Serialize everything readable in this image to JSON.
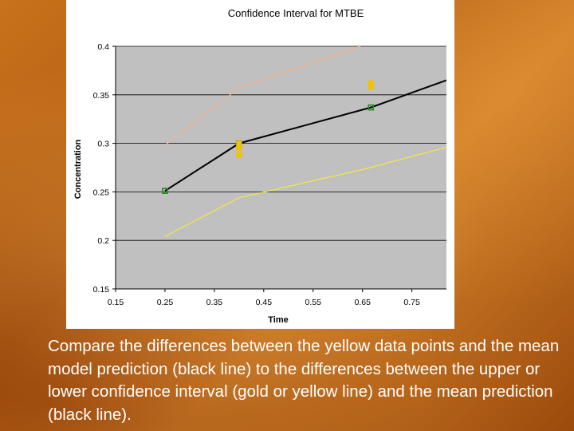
{
  "slide": {
    "caption": "Compare the differences between the yellow data points and the mean model prediction (black line) to the differences between the upper or lower confidence interval (gold or yellow line) and the mean prediction (black line).",
    "colors": {
      "background": "#b9651a",
      "caption_text": "#ffffff"
    }
  },
  "chart_data": {
    "type": "line",
    "title": "Confidence Interval for MTBE",
    "xlabel": "Time",
    "ylabel": "Concentration",
    "xlim": [
      0.15,
      0.82
    ],
    "ylim": [
      0.15,
      0.4
    ],
    "x_ticks": [
      0.15,
      0.25,
      0.35,
      0.45,
      0.55,
      0.65,
      0.75
    ],
    "x_tick_labels": [
      "0.15",
      "0.25",
      "0.35",
      "0.45",
      "0.55",
      "0.65",
      "0.75"
    ],
    "y_ticks": [
      0.15,
      0.2,
      0.25,
      0.3,
      0.35,
      0.4
    ],
    "y_tick_labels": [
      "0.15",
      "0.2",
      "0.25",
      "0.3",
      "0.35",
      "0.4"
    ],
    "grid": "horizontal",
    "plot_background": "#c0c0c0",
    "series": [
      {
        "role": "mean",
        "color": "#000000",
        "x": [
          0.25,
          0.4,
          0.667,
          0.82
        ],
        "y": [
          0.251,
          0.3,
          0.337,
          0.365
        ],
        "marker_x": [
          0.25,
          0.4,
          0.667
        ],
        "marker_y": [
          0.251,
          0.3,
          0.337
        ],
        "marker_color": "#228b22"
      },
      {
        "role": "upper",
        "color": "#f3b48f",
        "x": [
          0.25,
          0.4,
          0.65
        ],
        "y": [
          0.298,
          0.357,
          0.401
        ]
      },
      {
        "role": "lower",
        "color": "#f2e64a",
        "x": [
          0.25,
          0.4,
          0.65,
          0.82
        ],
        "y": [
          0.204,
          0.244,
          0.273,
          0.296
        ]
      }
    ],
    "observations": {
      "color": "#f2c200",
      "x": [
        0.4,
        0.4,
        0.4,
        0.667,
        0.667
      ],
      "y": [
        0.3,
        0.295,
        0.288,
        0.358,
        0.362
      ]
    }
  }
}
